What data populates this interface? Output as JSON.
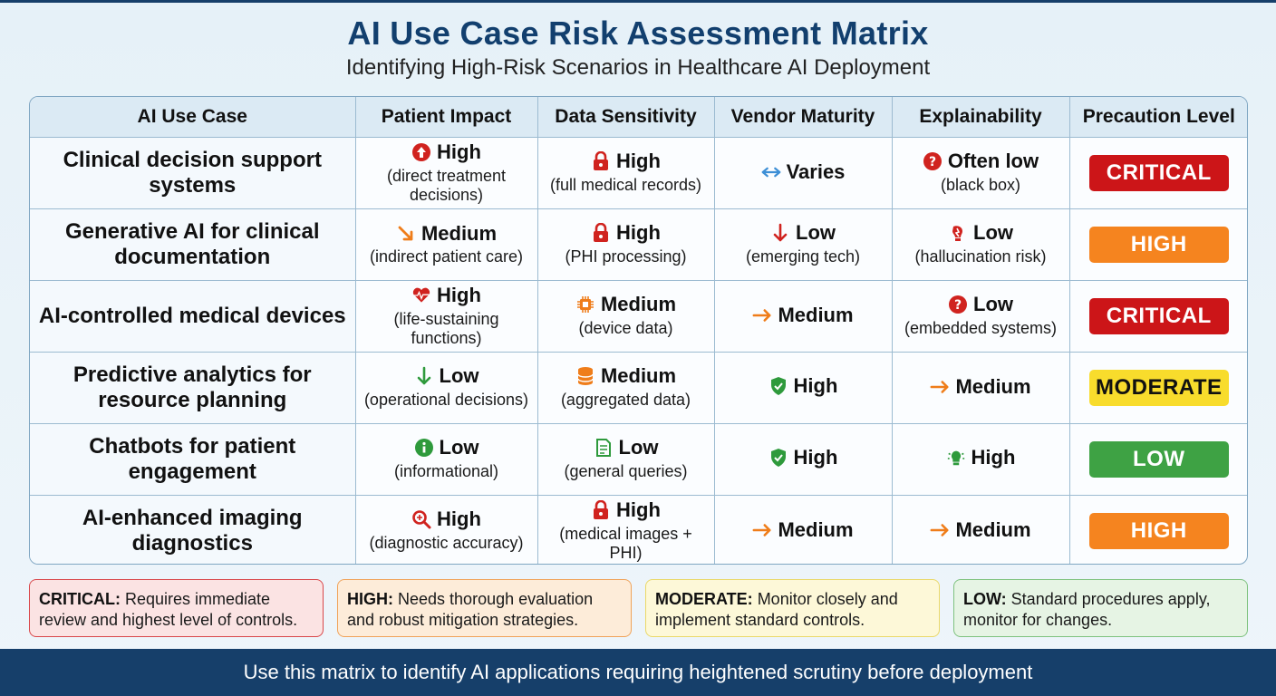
{
  "header": {
    "title": "AI Use Case Risk Assessment Matrix",
    "subtitle": "Identifying High-Risk Scenarios in Healthcare AI Deployment"
  },
  "columns": [
    "AI Use Case",
    "Patient Impact",
    "Data Sensitivity",
    "Vendor Maturity",
    "Explainability",
    "Precaution Level"
  ],
  "rows": [
    {
      "use_case": "Clinical decision support systems",
      "patient_impact": {
        "main": "High",
        "sub": "(direct treatment decisions)",
        "icon": "arrow-up-circle-icon",
        "color": "#d0231f"
      },
      "data_sensitivity": {
        "main": "High",
        "sub": "(full medical records)",
        "icon": "lock-icon",
        "color": "#d0231f"
      },
      "vendor_maturity": {
        "main": "Varies",
        "sub": "",
        "icon": "double-arrow-icon",
        "color": "#3d8fd6"
      },
      "explainability": {
        "main": "Often low",
        "sub": "(black box)",
        "icon": "question-circle-icon",
        "color": "#d0231f"
      },
      "precaution": {
        "label": "CRITICAL",
        "color": "#cc1518",
        "text_color": "#ffffff"
      }
    },
    {
      "use_case": "Generative AI for clinical documentation",
      "patient_impact": {
        "main": "Medium",
        "sub": "(indirect patient care)",
        "icon": "arrow-down-right-icon",
        "color": "#ef7d1a"
      },
      "data_sensitivity": {
        "main": "High",
        "sub": "(PHI processing)",
        "icon": "lock-icon",
        "color": "#d0231f"
      },
      "vendor_maturity": {
        "main": "Low",
        "sub": "(emerging tech)",
        "icon": "arrow-down-icon",
        "color": "#d0231f"
      },
      "explainability": {
        "main": "Low",
        "sub": "(hallucination risk)",
        "icon": "hallucination-icon",
        "color": "#d0231f"
      },
      "precaution": {
        "label": "HIGH",
        "color": "#f5841f",
        "text_color": "#ffffff"
      }
    },
    {
      "use_case": "AI-controlled medical devices",
      "patient_impact": {
        "main": "High",
        "sub": "(life-sustaining functions)",
        "icon": "heartbeat-icon",
        "color": "#d0231f"
      },
      "data_sensitivity": {
        "main": "Medium",
        "sub": "(device data)",
        "icon": "chip-icon",
        "color": "#ef7d1a"
      },
      "vendor_maturity": {
        "main": "Medium",
        "sub": "",
        "icon": "arrow-right-icon",
        "color": "#ef7d1a"
      },
      "explainability": {
        "main": "Low",
        "sub": "(embedded systems)",
        "icon": "question-circle-icon",
        "color": "#d0231f"
      },
      "precaution": {
        "label": "CRITICAL",
        "color": "#cc1518",
        "text_color": "#ffffff"
      }
    },
    {
      "use_case": "Predictive analytics for resource planning",
      "patient_impact": {
        "main": "Low",
        "sub": "(operational decisions)",
        "icon": "arrow-down-icon",
        "color": "#2e9a3c"
      },
      "data_sensitivity": {
        "main": "Medium",
        "sub": "(aggregated data)",
        "icon": "database-icon",
        "color": "#ef7d1a"
      },
      "vendor_maturity": {
        "main": "High",
        "sub": "",
        "icon": "shield-check-icon",
        "color": "#2e9a3c"
      },
      "explainability": {
        "main": "Medium",
        "sub": "",
        "icon": "arrow-right-icon",
        "color": "#ef7d1a"
      },
      "precaution": {
        "label": "MODERATE",
        "color": "#f8dc2c",
        "text_color": "#111111"
      }
    },
    {
      "use_case": "Chatbots for patient engagement",
      "patient_impact": {
        "main": "Low",
        "sub": "(informational)",
        "icon": "info-circle-icon",
        "color": "#2e9a3c"
      },
      "data_sensitivity": {
        "main": "Low",
        "sub": "(general queries)",
        "icon": "document-icon",
        "color": "#2e9a3c"
      },
      "vendor_maturity": {
        "main": "High",
        "sub": "",
        "icon": "shield-check-icon",
        "color": "#2e9a3c"
      },
      "explainability": {
        "main": "High",
        "sub": "",
        "icon": "lightbulb-icon",
        "color": "#2e9a3c"
      },
      "precaution": {
        "label": "LOW",
        "color": "#3ea244",
        "text_color": "#ffffff"
      }
    },
    {
      "use_case": "AI-enhanced imaging diagnostics",
      "patient_impact": {
        "main": "High",
        "sub": "(diagnostic accuracy)",
        "icon": "magnifier-icon",
        "color": "#d0231f"
      },
      "data_sensitivity": {
        "main": "High",
        "sub": "(medical images + PHI)",
        "icon": "lock-icon",
        "color": "#d0231f"
      },
      "vendor_maturity": {
        "main": "Medium",
        "sub": "",
        "icon": "arrow-right-icon",
        "color": "#ef7d1a"
      },
      "explainability": {
        "main": "Medium",
        "sub": "",
        "icon": "arrow-right-icon",
        "color": "#ef7d1a"
      },
      "precaution": {
        "label": "HIGH",
        "color": "#f5841f",
        "text_color": "#ffffff"
      }
    }
  ],
  "legend": [
    {
      "key": "CRITICAL:",
      "text": "Requires immediate review and highest level of controls.",
      "bg": "#fbe3e3",
      "border": "#d9474a"
    },
    {
      "key": "HIGH:",
      "text": "Needs thorough evaluation and robust mitigation strategies.",
      "bg": "#fdecd9",
      "border": "#f0a35a"
    },
    {
      "key": "MODERATE:",
      "text": "Monitor closely and implement standard controls.",
      "bg": "#fdf8d8",
      "border": "#ead96a"
    },
    {
      "key": "LOW:",
      "text": "Standard procedures apply, monitor for changes.",
      "bg": "#e6f4e4",
      "border": "#7fc27f"
    }
  ],
  "footer": {
    "text": "Use this matrix to identify AI applications requiring heightened scrutiny before deployment"
  }
}
